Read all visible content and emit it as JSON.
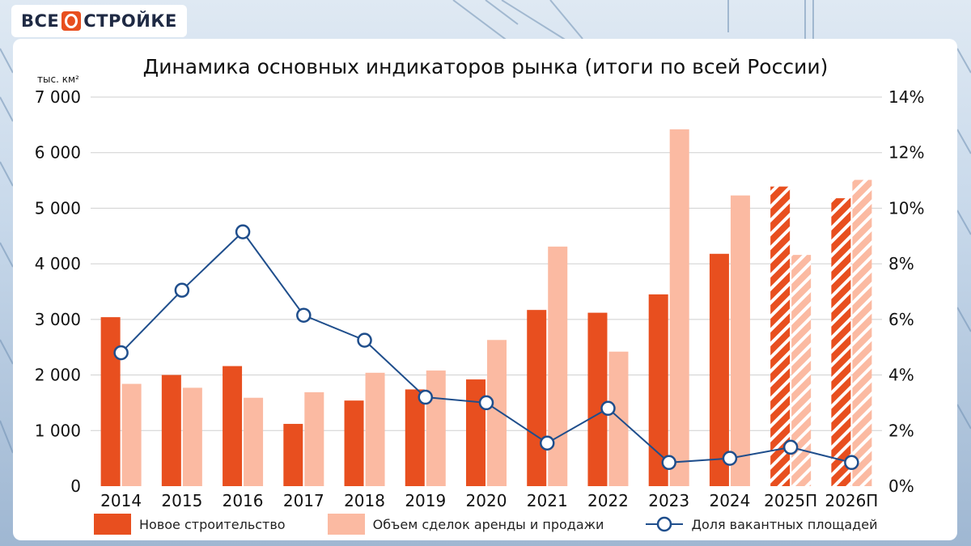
{
  "logo": {
    "left_text": "ВСЕ",
    "right_text": "СТРОЙКЕ"
  },
  "colors": {
    "new_construction": "#e84f1f",
    "deals": "#fbbaa2",
    "vacancy_line": "#1f4e8c",
    "grid": "#cfcfcf"
  },
  "chart_data": {
    "type": "bar",
    "title": "Динамика основных индикаторов рынка (итоги по всей России)",
    "y_unit_label": "тыс. км²",
    "categories": [
      "2014",
      "2015",
      "2016",
      "2017",
      "2018",
      "2019",
      "2020",
      "2021",
      "2022",
      "2023",
      "2024",
      "2025П",
      "2026П"
    ],
    "forecast_categories": [
      "2025П",
      "2026П"
    ],
    "series": [
      {
        "name": "Новое строительство",
        "type": "bar",
        "axis": "left",
        "values": [
          3040,
          2000,
          2160,
          1120,
          1540,
          1740,
          1920,
          3170,
          3120,
          3450,
          4180,
          5390,
          5180
        ]
      },
      {
        "name": "Объем сделок аренды и продажи",
        "type": "bar",
        "axis": "left",
        "values": [
          1840,
          1770,
          1590,
          1690,
          2040,
          2080,
          2630,
          4310,
          2420,
          6420,
          5230,
          4160,
          5510
        ]
      },
      {
        "name": "Доля вакантных площадей",
        "type": "line",
        "axis": "right",
        "unit": "%",
        "values": [
          4.8,
          7.05,
          9.15,
          6.15,
          5.25,
          3.2,
          3.0,
          1.55,
          2.8,
          0.85,
          1.0,
          1.4,
          0.85
        ]
      }
    ],
    "y_left": {
      "min": 0,
      "max": 7000,
      "ticks": [
        0,
        1000,
        2000,
        3000,
        4000,
        5000,
        6000,
        7000
      ],
      "tick_labels": [
        "0",
        "1 000",
        "2 000",
        "3 000",
        "4 000",
        "5 000",
        "6 000",
        "7 000"
      ]
    },
    "y_right": {
      "min": 0,
      "max": 14,
      "ticks": [
        0,
        2,
        4,
        6,
        8,
        10,
        12,
        14
      ],
      "tick_labels": [
        "0%",
        "2%",
        "4%",
        "6%",
        "8%",
        "10%",
        "12%",
        "14%"
      ]
    },
    "grid": true,
    "legend_position": "bottom"
  }
}
